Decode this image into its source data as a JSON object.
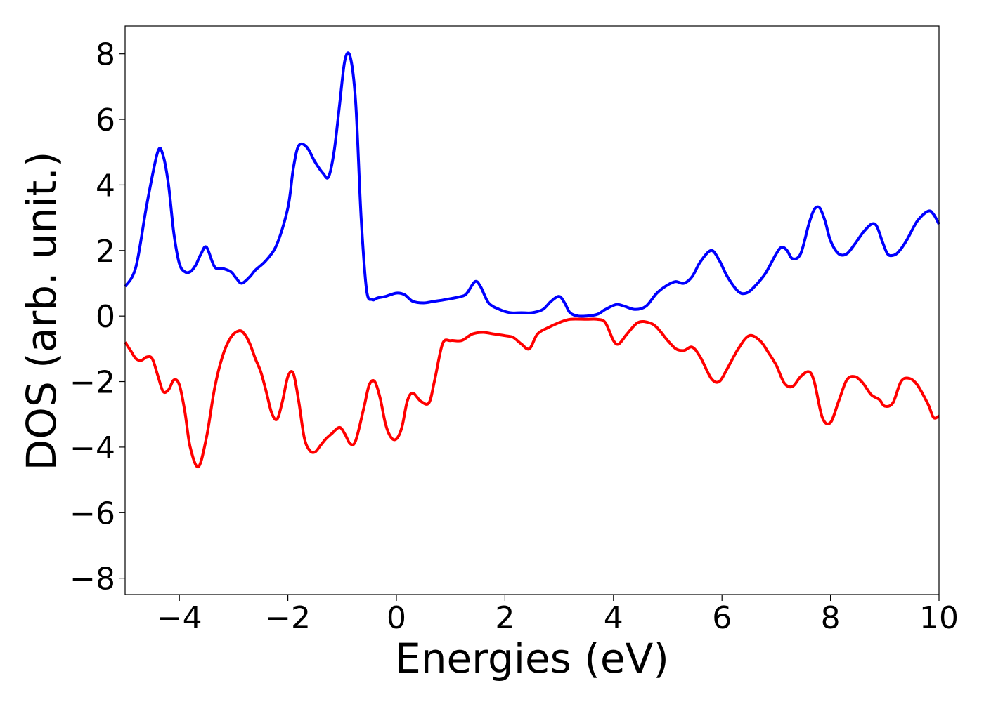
{
  "chart_data": {
    "type": "line",
    "title": "",
    "xlabel": "Energies (eV)",
    "ylabel": "DOS (arb. unit.)",
    "xlim": [
      -5,
      10
    ],
    "ylim": [
      -8.5,
      8.85
    ],
    "xticks": [
      -4,
      -2,
      0,
      2,
      4,
      6,
      8,
      10
    ],
    "xtick_labels": [
      "−4",
      "−2",
      "0",
      "2",
      "4",
      "6",
      "8",
      "10"
    ],
    "yticks": [
      -8,
      -6,
      -4,
      -2,
      0,
      2,
      4,
      6,
      8
    ],
    "ytick_labels": [
      "−8",
      "−6",
      "−4",
      "−2",
      "0",
      "2",
      "4",
      "6",
      "8"
    ],
    "grid": false,
    "legend": "none",
    "series": [
      {
        "color": "#0000ff",
        "x": [
          -5.0,
          -4.8,
          -4.6,
          -4.4,
          -4.3,
          -4.2,
          -4.1,
          -4.0,
          -3.9,
          -3.8,
          -3.7,
          -3.6,
          -3.5,
          -3.35,
          -3.2,
          -3.05,
          -2.95,
          -2.85,
          -2.7,
          -2.6,
          -2.4,
          -2.2,
          -2.0,
          -1.9,
          -1.8,
          -1.65,
          -1.5,
          -1.35,
          -1.25,
          -1.15,
          -1.05,
          -0.95,
          -0.85,
          -0.75,
          -0.65,
          -0.55,
          -0.45,
          -0.35,
          -0.2,
          0.0,
          0.15,
          0.3,
          0.5,
          0.7,
          0.9,
          1.2,
          1.3,
          1.45,
          1.55,
          1.7,
          1.9,
          2.1,
          2.3,
          2.5,
          2.7,
          2.85,
          3.0,
          3.1,
          3.2,
          3.35,
          3.5,
          3.7,
          3.85,
          4.05,
          4.2,
          4.4,
          4.6,
          4.8,
          5.0,
          5.15,
          5.3,
          5.45,
          5.6,
          5.8,
          5.95,
          6.1,
          6.3,
          6.45,
          6.6,
          6.8,
          7.0,
          7.1,
          7.2,
          7.3,
          7.45,
          7.6,
          7.7,
          7.8,
          7.9,
          8.0,
          8.15,
          8.3,
          8.45,
          8.6,
          8.75,
          8.85,
          8.95,
          9.05,
          9.15,
          9.25,
          9.4,
          9.6,
          9.8,
          9.9,
          10.0
        ],
        "y": [
          0.9,
          1.5,
          3.4,
          5.0,
          4.9,
          4.0,
          2.5,
          1.6,
          1.35,
          1.35,
          1.55,
          1.9,
          2.1,
          1.5,
          1.45,
          1.35,
          1.15,
          1.0,
          1.2,
          1.4,
          1.7,
          2.2,
          3.3,
          4.5,
          5.2,
          5.15,
          4.7,
          4.35,
          4.25,
          5.0,
          6.4,
          7.8,
          7.9,
          6.5,
          3.0,
          0.8,
          0.5,
          0.55,
          0.6,
          0.7,
          0.65,
          0.45,
          0.4,
          0.45,
          0.5,
          0.6,
          0.7,
          1.05,
          0.9,
          0.4,
          0.2,
          0.1,
          0.1,
          0.1,
          0.2,
          0.45,
          0.6,
          0.4,
          0.1,
          0.0,
          0.0,
          0.05,
          0.2,
          0.35,
          0.3,
          0.2,
          0.3,
          0.7,
          0.95,
          1.05,
          1.0,
          1.2,
          1.65,
          2.0,
          1.7,
          1.2,
          0.75,
          0.7,
          0.9,
          1.3,
          1.9,
          2.1,
          2.0,
          1.75,
          1.9,
          2.8,
          3.25,
          3.3,
          2.9,
          2.3,
          1.9,
          1.9,
          2.2,
          2.55,
          2.8,
          2.75,
          2.3,
          1.9,
          1.85,
          1.95,
          2.3,
          2.9,
          3.2,
          3.1,
          2.8
        ]
      },
      {
        "color": "#ff0000",
        "x": [
          -5.0,
          -4.9,
          -4.8,
          -4.7,
          -4.6,
          -4.5,
          -4.4,
          -4.3,
          -4.2,
          -4.1,
          -4.0,
          -3.9,
          -3.8,
          -3.65,
          -3.5,
          -3.35,
          -3.2,
          -3.05,
          -2.9,
          -2.8,
          -2.7,
          -2.6,
          -2.5,
          -2.4,
          -2.3,
          -2.2,
          -2.1,
          -2.0,
          -1.9,
          -1.8,
          -1.7,
          -1.6,
          -1.5,
          -1.4,
          -1.3,
          -1.2,
          -1.05,
          -0.95,
          -0.85,
          -0.75,
          -0.6,
          -0.5,
          -0.4,
          -0.3,
          -0.2,
          -0.1,
          0.0,
          0.1,
          0.2,
          0.3,
          0.45,
          0.6,
          0.7,
          0.85,
          1.0,
          1.2,
          1.4,
          1.6,
          1.8,
          2.0,
          2.15,
          2.3,
          2.45,
          2.6,
          2.8,
          3.0,
          3.2,
          3.5,
          3.7,
          3.85,
          4.0,
          4.1,
          4.25,
          4.45,
          4.65,
          4.8,
          5.0,
          5.15,
          5.3,
          5.45,
          5.6,
          5.8,
          5.95,
          6.1,
          6.3,
          6.5,
          6.7,
          6.85,
          7.0,
          7.15,
          7.3,
          7.45,
          7.6,
          7.7,
          7.85,
          8.0,
          8.15,
          8.3,
          8.45,
          8.6,
          8.75,
          8.9,
          9.0,
          9.15,
          9.3,
          9.45,
          9.6,
          9.8,
          9.9,
          10.0
        ],
        "y": [
          -0.8,
          -1.05,
          -1.3,
          -1.35,
          -1.25,
          -1.3,
          -1.8,
          -2.3,
          -2.25,
          -1.95,
          -2.1,
          -2.9,
          -4.0,
          -4.6,
          -3.7,
          -2.2,
          -1.2,
          -0.65,
          -0.45,
          -0.55,
          -0.85,
          -1.3,
          -1.7,
          -2.3,
          -2.95,
          -3.15,
          -2.6,
          -1.85,
          -1.75,
          -2.6,
          -3.7,
          -4.1,
          -4.15,
          -3.95,
          -3.75,
          -3.6,
          -3.4,
          -3.6,
          -3.9,
          -3.8,
          -2.8,
          -2.1,
          -2.0,
          -2.5,
          -3.3,
          -3.7,
          -3.75,
          -3.4,
          -2.6,
          -2.35,
          -2.6,
          -2.65,
          -2.0,
          -0.85,
          -0.75,
          -0.75,
          -0.55,
          -0.5,
          -0.55,
          -0.6,
          -0.65,
          -0.85,
          -1.0,
          -0.55,
          -0.35,
          -0.2,
          -0.1,
          -0.1,
          -0.1,
          -0.2,
          -0.75,
          -0.85,
          -0.55,
          -0.2,
          -0.2,
          -0.35,
          -0.75,
          -1.0,
          -1.05,
          -0.95,
          -1.25,
          -1.9,
          -2.0,
          -1.6,
          -1.0,
          -0.6,
          -0.75,
          -1.1,
          -1.5,
          -2.05,
          -2.15,
          -1.85,
          -1.7,
          -2.0,
          -3.1,
          -3.25,
          -2.6,
          -1.95,
          -1.85,
          -2.05,
          -2.4,
          -2.55,
          -2.75,
          -2.65,
          -2.0,
          -1.9,
          -2.1,
          -2.7,
          -3.1,
          -3.05
        ]
      }
    ]
  }
}
